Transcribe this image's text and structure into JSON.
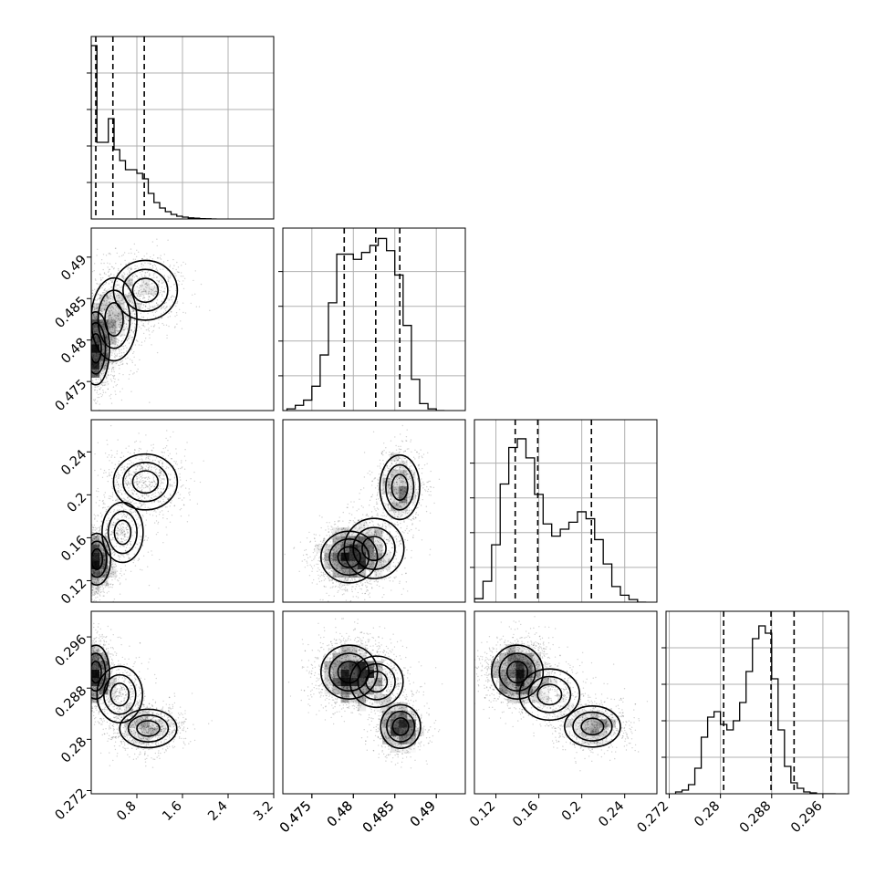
{
  "figure": {
    "kind": "corner plot",
    "background": "#ffffff",
    "panel_edge_color": "#000000",
    "grid_color": "#b0b0b0",
    "quantile_line_style": "dashed",
    "histogram_color": "#000000",
    "scatter_color": "#000000"
  },
  "chart_data": [
    {
      "type": "histogram",
      "row": 0,
      "col": 0,
      "grid": true,
      "xlim": [
        0,
        3.2
      ],
      "x_ticks": [
        0.8,
        1.6,
        2.4,
        3.2
      ],
      "bin_edges": [
        0,
        0.1,
        0.2,
        0.3,
        0.4,
        0.5,
        0.6,
        0.7,
        0.8,
        0.9,
        1.0,
        1.1,
        1.2,
        1.3,
        1.4,
        1.5,
        1.6,
        1.7,
        1.8,
        1.9,
        2.0,
        2.1,
        2.2
      ],
      "counts": [
        0.95,
        0.42,
        0.42,
        0.55,
        0.38,
        0.32,
        0.27,
        0.27,
        0.25,
        0.22,
        0.14,
        0.09,
        0.06,
        0.04,
        0.025,
        0.015,
        0.01,
        0.006,
        0.004,
        0.002,
        0.001,
        0.0
      ],
      "ylim": [
        0,
        1.0
      ],
      "quantiles": [
        0.08,
        0.38,
        0.93
      ]
    },
    {
      "type": "histogram",
      "row": 1,
      "col": 1,
      "grid": true,
      "xlim": [
        0.4715,
        0.4935
      ],
      "bin_edges": [
        0.472,
        0.473,
        0.474,
        0.475,
        0.476,
        0.477,
        0.478,
        0.479,
        0.48,
        0.481,
        0.482,
        0.483,
        0.484,
        0.485,
        0.486,
        0.487,
        0.488,
        0.489,
        0.49,
        0.491
      ],
      "counts": [
        0.01,
        0.03,
        0.06,
        0.14,
        0.32,
        0.62,
        0.9,
        0.9,
        0.87,
        0.91,
        0.95,
        0.99,
        0.92,
        0.78,
        0.49,
        0.18,
        0.04,
        0.01,
        0.0
      ],
      "ylim": [
        0,
        1.05
      ],
      "quantiles": [
        0.4789,
        0.4827,
        0.4856
      ]
    },
    {
      "type": "histogram",
      "row": 2,
      "col": 2,
      "grid": true,
      "xlim": [
        0.1,
        0.27
      ],
      "x_ticks": [
        0.12,
        0.16,
        0.2,
        0.24
      ],
      "bin_edges": [
        0.1,
        0.108,
        0.116,
        0.124,
        0.132,
        0.14,
        0.148,
        0.156,
        0.164,
        0.172,
        0.18,
        0.188,
        0.196,
        0.204,
        0.212,
        0.22,
        0.228,
        0.236,
        0.244,
        0.252,
        0.26
      ],
      "counts": [
        0.02,
        0.12,
        0.33,
        0.68,
        0.89,
        0.94,
        0.83,
        0.62,
        0.45,
        0.38,
        0.42,
        0.46,
        0.52,
        0.48,
        0.36,
        0.22,
        0.09,
        0.04,
        0.015,
        0.0
      ],
      "ylim": [
        0,
        1.05
      ],
      "quantiles": [
        0.138,
        0.159,
        0.209
      ]
    },
    {
      "type": "histogram",
      "row": 3,
      "col": 3,
      "grid": true,
      "xlim": [
        0.2715,
        0.3
      ],
      "x_ticks": [
        0.272,
        0.28,
        0.288,
        0.296
      ],
      "bin_edges": [
        0.273,
        0.274,
        0.275,
        0.276,
        0.277,
        0.278,
        0.279,
        0.28,
        0.281,
        0.282,
        0.283,
        0.284,
        0.285,
        0.286,
        0.287,
        0.288,
        0.289,
        0.29,
        0.291,
        0.292,
        0.293,
        0.294,
        0.295,
        0.296,
        0.297,
        0.298
      ],
      "counts": [
        0.01,
        0.02,
        0.05,
        0.14,
        0.31,
        0.42,
        0.45,
        0.38,
        0.35,
        0.4,
        0.5,
        0.67,
        0.85,
        0.92,
        0.88,
        0.63,
        0.35,
        0.15,
        0.06,
        0.03,
        0.01,
        0.005,
        0.0,
        0.0,
        0.0
      ],
      "ylim": [
        0,
        1.0
      ],
      "quantiles": [
        0.2805,
        0.2879,
        0.2915
      ]
    },
    {
      "type": "scatter_density",
      "row": 1,
      "col": 0,
      "xlim": [
        0,
        3.2
      ],
      "ylim": [
        0.4715,
        0.4935
      ],
      "y_ticks": [
        0.475,
        0.48,
        0.485,
        0.49
      ],
      "modes": [
        {
          "x": 0.08,
          "y": 0.479,
          "sx": 0.12,
          "sy": 0.0022,
          "w": 0.45
        },
        {
          "x": 0.4,
          "y": 0.4825,
          "sx": 0.2,
          "sy": 0.0025,
          "w": 0.3
        },
        {
          "x": 0.95,
          "y": 0.486,
          "sx": 0.28,
          "sy": 0.0018,
          "w": 0.25
        }
      ]
    },
    {
      "type": "scatter_density",
      "row": 2,
      "col": 0,
      "xlim": [
        0,
        3.2
      ],
      "ylim": [
        0.1,
        0.27
      ],
      "y_ticks": [
        0.12,
        0.16,
        0.2,
        0.24
      ],
      "modes": [
        {
          "x": 0.1,
          "y": 0.14,
          "sx": 0.12,
          "sy": 0.012,
          "w": 0.55
        },
        {
          "x": 0.55,
          "y": 0.165,
          "sx": 0.18,
          "sy": 0.014,
          "w": 0.15
        },
        {
          "x": 0.95,
          "y": 0.212,
          "sx": 0.28,
          "sy": 0.013,
          "w": 0.3
        }
      ]
    },
    {
      "type": "scatter_density",
      "row": 3,
      "col": 0,
      "xlim": [
        0,
        3.2
      ],
      "ylim": [
        0.2715,
        0.3
      ],
      "y_ticks": [
        0.272,
        0.28,
        0.288,
        0.296
      ],
      "modes": [
        {
          "x": 0.08,
          "y": 0.2905,
          "sx": 0.12,
          "sy": 0.0021,
          "w": 0.45
        },
        {
          "x": 0.5,
          "y": 0.287,
          "sx": 0.2,
          "sy": 0.0022,
          "w": 0.2
        },
        {
          "x": 1.0,
          "y": 0.2817,
          "sx": 0.25,
          "sy": 0.0015,
          "w": 0.35
        }
      ]
    },
    {
      "type": "scatter_density",
      "row": 2,
      "col": 1,
      "xlim": [
        0.4715,
        0.4935
      ],
      "ylim": [
        0.1,
        0.27
      ],
      "modes": [
        {
          "x": 0.4795,
          "y": 0.142,
          "sx": 0.0017,
          "sy": 0.012,
          "w": 0.55
        },
        {
          "x": 0.4825,
          "y": 0.15,
          "sx": 0.0018,
          "sy": 0.014,
          "w": 0.15
        },
        {
          "x": 0.4856,
          "y": 0.207,
          "sx": 0.0012,
          "sy": 0.015,
          "w": 0.3
        }
      ]
    },
    {
      "type": "scatter_density",
      "row": 3,
      "col": 1,
      "xlim": [
        0.4715,
        0.4935
      ],
      "ylim": [
        0.2715,
        0.3
      ],
      "modes": [
        {
          "x": 0.4795,
          "y": 0.2905,
          "sx": 0.0017,
          "sy": 0.0021,
          "w": 0.55
        },
        {
          "x": 0.4828,
          "y": 0.289,
          "sx": 0.0016,
          "sy": 0.002,
          "w": 0.15
        },
        {
          "x": 0.4857,
          "y": 0.282,
          "sx": 0.0012,
          "sy": 0.0017,
          "w": 0.3
        }
      ]
    },
    {
      "type": "scatter_density",
      "row": 3,
      "col": 2,
      "xlim": [
        0.1,
        0.27
      ],
      "ylim": [
        0.2715,
        0.3
      ],
      "modes": [
        {
          "x": 0.14,
          "y": 0.2905,
          "sx": 0.012,
          "sy": 0.0021,
          "w": 0.55
        },
        {
          "x": 0.17,
          "y": 0.287,
          "sx": 0.014,
          "sy": 0.002,
          "w": 0.15
        },
        {
          "x": 0.21,
          "y": 0.282,
          "sx": 0.013,
          "sy": 0.0016,
          "w": 0.3
        }
      ]
    }
  ]
}
